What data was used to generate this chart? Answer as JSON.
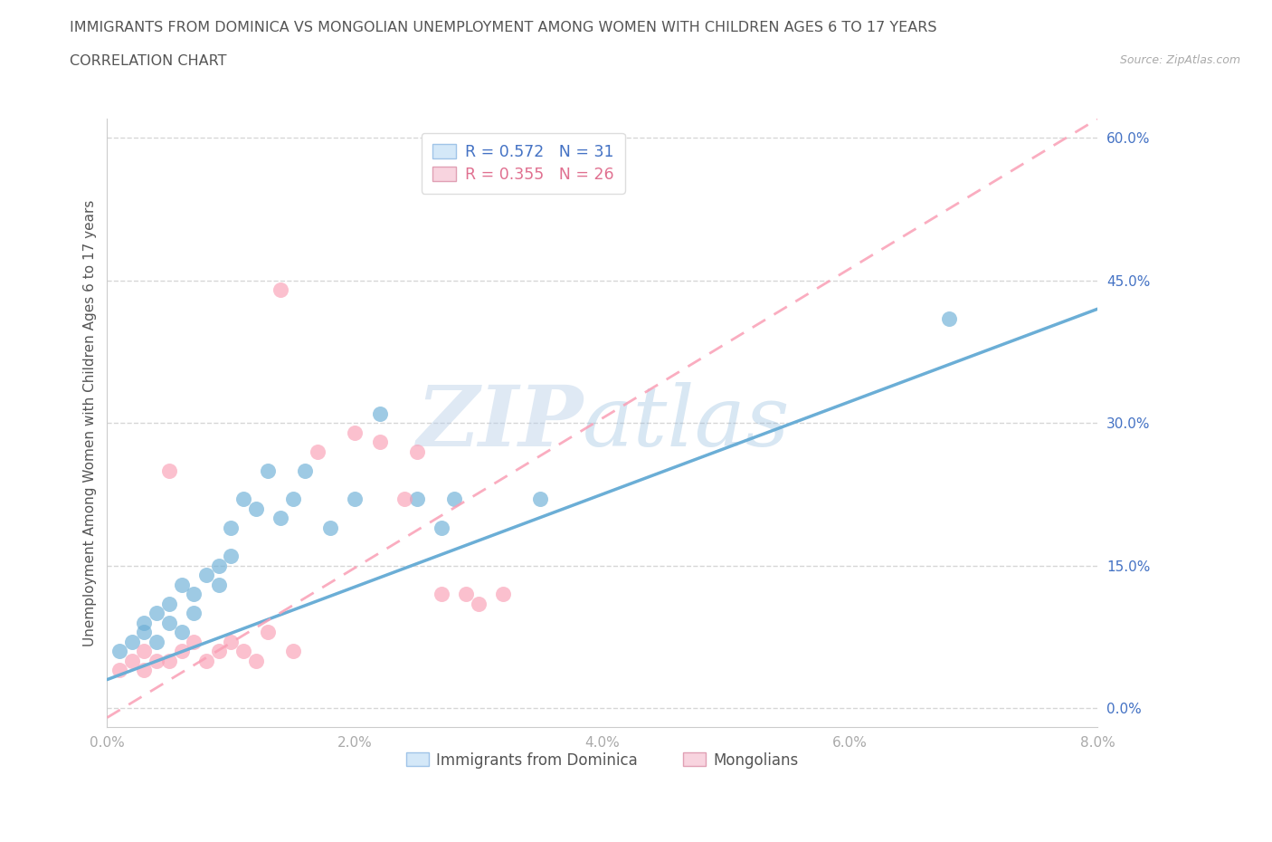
{
  "title": "IMMIGRANTS FROM DOMINICA VS MONGOLIAN UNEMPLOYMENT AMONG WOMEN WITH CHILDREN AGES 6 TO 17 YEARS",
  "subtitle": "CORRELATION CHART",
  "source": "Source: ZipAtlas.com",
  "xlabel": "",
  "ylabel": "Unemployment Among Women with Children Ages 6 to 17 years",
  "xlim": [
    0.0,
    0.08
  ],
  "ylim": [
    -0.02,
    0.62
  ],
  "xticks": [
    0.0,
    0.02,
    0.04,
    0.06,
    0.08
  ],
  "xtick_labels": [
    "0.0%",
    "2.0%",
    "4.0%",
    "6.0%",
    "8.0%"
  ],
  "yticks": [
    0.0,
    0.15,
    0.3,
    0.45,
    0.6
  ],
  "ytick_labels": [
    "0.0%",
    "15.0%",
    "30.0%",
    "45.0%",
    "60.0%"
  ],
  "series1_name": "Immigrants from Dominica",
  "series1_color": "#6baed6",
  "series1_R": 0.572,
  "series1_N": 31,
  "series1_x": [
    0.001,
    0.002,
    0.003,
    0.003,
    0.004,
    0.004,
    0.005,
    0.005,
    0.006,
    0.006,
    0.007,
    0.007,
    0.008,
    0.009,
    0.009,
    0.01,
    0.011,
    0.012,
    0.013,
    0.014,
    0.015,
    0.018,
    0.02,
    0.022,
    0.025,
    0.027,
    0.028,
    0.01,
    0.016,
    0.035,
    0.068
  ],
  "series1_y": [
    0.06,
    0.07,
    0.08,
    0.09,
    0.07,
    0.1,
    0.09,
    0.11,
    0.08,
    0.13,
    0.1,
    0.12,
    0.14,
    0.15,
    0.13,
    0.19,
    0.22,
    0.21,
    0.25,
    0.2,
    0.22,
    0.19,
    0.22,
    0.31,
    0.22,
    0.19,
    0.22,
    0.16,
    0.25,
    0.22,
    0.41
  ],
  "series2_name": "Mongolians",
  "series2_color": "#fa9fb5",
  "series2_R": 0.355,
  "series2_N": 26,
  "series2_x": [
    0.001,
    0.002,
    0.003,
    0.003,
    0.004,
    0.005,
    0.005,
    0.006,
    0.007,
    0.008,
    0.009,
    0.01,
    0.011,
    0.012,
    0.013,
    0.014,
    0.015,
    0.017,
    0.02,
    0.022,
    0.024,
    0.025,
    0.027,
    0.029,
    0.03,
    0.032
  ],
  "series2_y": [
    0.04,
    0.05,
    0.04,
    0.06,
    0.05,
    0.05,
    0.25,
    0.06,
    0.07,
    0.05,
    0.06,
    0.07,
    0.06,
    0.05,
    0.08,
    0.44,
    0.06,
    0.27,
    0.29,
    0.28,
    0.22,
    0.27,
    0.12,
    0.12,
    0.11,
    0.12
  ],
  "trend1_x0": 0.0,
  "trend1_y0": 0.03,
  "trend1_x1": 0.08,
  "trend1_y1": 0.42,
  "trend2_x0": 0.0,
  "trend2_y0": -0.01,
  "trend2_x1": 0.08,
  "trend2_y1": 0.62,
  "watermark_zip": "ZIP",
  "watermark_atlas": "atlas",
  "background_color": "#ffffff",
  "grid_color": "#cccccc",
  "title_color": "#555555",
  "axis_label_color": "#4472c4",
  "tick_label_color": "#4472c4",
  "legend_box_color": "#a8c8e8",
  "legend_text1_color": "#4472c4",
  "legend_text2_color": "#e07090"
}
